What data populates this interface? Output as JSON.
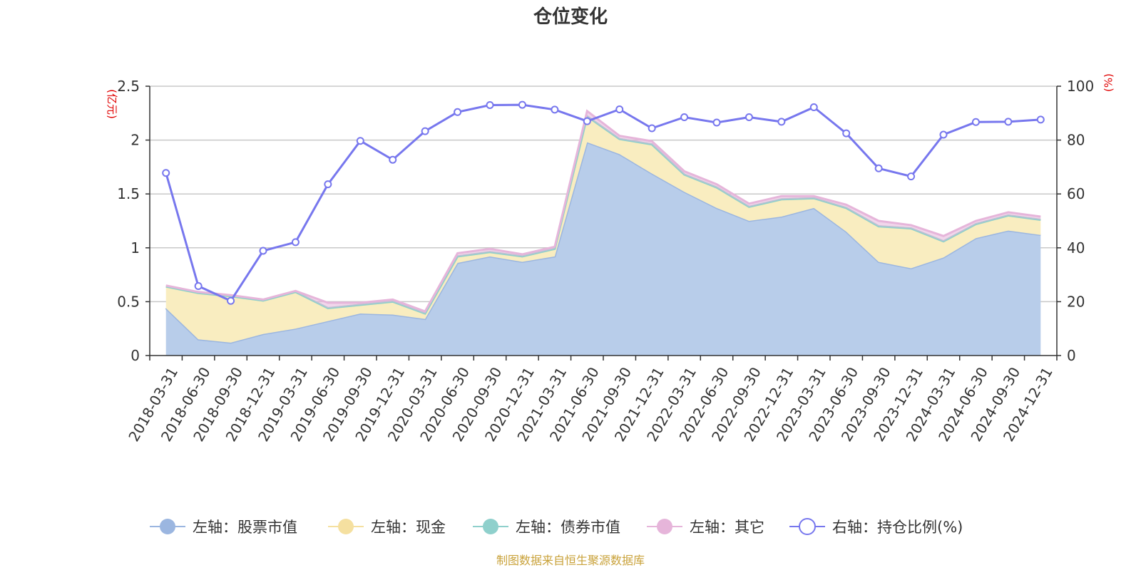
{
  "colors": {
    "stock": "#9bb6e0",
    "stock_fill": "#b8cdea",
    "cash": "#f5e0a0",
    "cash_fill": "#f9edc0",
    "bond": "#8fd0cc",
    "other": "#e6b5da",
    "ratio": "#7777ee",
    "grid": "#c8c8c8",
    "axis": "#333333",
    "unit": "#e00000",
    "source": "#c9a23a"
  },
  "chart_data": {
    "type": "area",
    "title": "仓位变化",
    "left_unit": "(亿元)",
    "right_unit": "(%)",
    "left_ticks": [
      "0",
      "0.5",
      "1",
      "1.5",
      "2",
      "2.5"
    ],
    "right_ticks": [
      "0",
      "20",
      "40",
      "60",
      "80",
      "100"
    ],
    "left_ylim": [
      0,
      2.5
    ],
    "right_ylim": [
      0,
      100
    ],
    "grid": true,
    "legend_position": "bottom",
    "categories": [
      "2018-03-31",
      "2018-06-30",
      "2018-09-30",
      "2018-12-31",
      "2019-03-31",
      "2019-06-30",
      "2019-09-30",
      "2019-12-31",
      "2020-03-31",
      "2020-06-30",
      "2020-09-30",
      "2020-12-31",
      "2021-03-31",
      "2021-06-30",
      "2021-09-30",
      "2021-12-31",
      "2022-03-31",
      "2022-06-30",
      "2022-09-30",
      "2022-12-31",
      "2023-03-31",
      "2023-06-30",
      "2023-09-30",
      "2023-12-31",
      "2024-03-31",
      "2024-06-30",
      "2024-09-30",
      "2024-12-31"
    ],
    "series": [
      {
        "name": "左轴：股票市值",
        "axis": "left",
        "stacked": true,
        "values": [
          0.44,
          0.15,
          0.12,
          0.2,
          0.25,
          0.32,
          0.39,
          0.38,
          0.34,
          0.86,
          0.92,
          0.87,
          0.92,
          1.98,
          1.87,
          1.69,
          1.52,
          1.37,
          1.25,
          1.29,
          1.37,
          1.15,
          0.87,
          0.81,
          0.91,
          1.09,
          1.16,
          1.12
        ]
      },
      {
        "name": "左轴：现金",
        "axis": "left",
        "stacked": true,
        "values": [
          0.2,
          0.43,
          0.43,
          0.31,
          0.34,
          0.12,
          0.08,
          0.12,
          0.05,
          0.06,
          0.04,
          0.05,
          0.07,
          0.24,
          0.14,
          0.27,
          0.16,
          0.19,
          0.13,
          0.16,
          0.09,
          0.22,
          0.33,
          0.37,
          0.15,
          0.13,
          0.14,
          0.14
        ]
      },
      {
        "name": "左轴：债券市值",
        "axis": "left",
        "stacked": true,
        "values": [
          0,
          0,
          0,
          0,
          0,
          0,
          0,
          0,
          0,
          0,
          0,
          0,
          0,
          0,
          0,
          0,
          0,
          0,
          0,
          0,
          0,
          0,
          0,
          0,
          0,
          0,
          0,
          0
        ]
      },
      {
        "name": "左轴：其它",
        "axis": "left",
        "stacked": true,
        "values": [
          0.01,
          0.01,
          0.01,
          0.01,
          0.01,
          0.05,
          0.02,
          0.02,
          0.02,
          0.03,
          0.03,
          0.02,
          0.02,
          0.05,
          0.03,
          0.03,
          0.03,
          0.03,
          0.03,
          0.03,
          0.02,
          0.03,
          0.05,
          0.03,
          0.05,
          0.03,
          0.03,
          0.03
        ]
      },
      {
        "name": "右轴：持仓比例(%)",
        "axis": "right",
        "type": "line",
        "values": [
          67.8,
          25.8,
          20.3,
          38.9,
          42.1,
          63.6,
          79.7,
          72.7,
          83.3,
          90.4,
          93.0,
          93.1,
          91.3,
          87.0,
          91.4,
          84.4,
          88.5,
          86.5,
          88.5,
          86.8,
          92.2,
          82.5,
          69.5,
          66.5,
          82.0,
          86.7,
          86.8,
          87.6
        ]
      }
    ]
  },
  "legend": [
    {
      "label": "左轴：股票市值",
      "color_key": "stock",
      "hollow": false
    },
    {
      "label": "左轴：现金",
      "color_key": "cash",
      "hollow": false
    },
    {
      "label": "左轴：债券市值",
      "color_key": "bond",
      "hollow": false
    },
    {
      "label": "左轴：其它",
      "color_key": "other",
      "hollow": false
    },
    {
      "label": "右轴：持仓比例(%)",
      "color_key": "ratio",
      "hollow": true
    }
  ],
  "source": "制图数据来自恒生聚源数据库"
}
